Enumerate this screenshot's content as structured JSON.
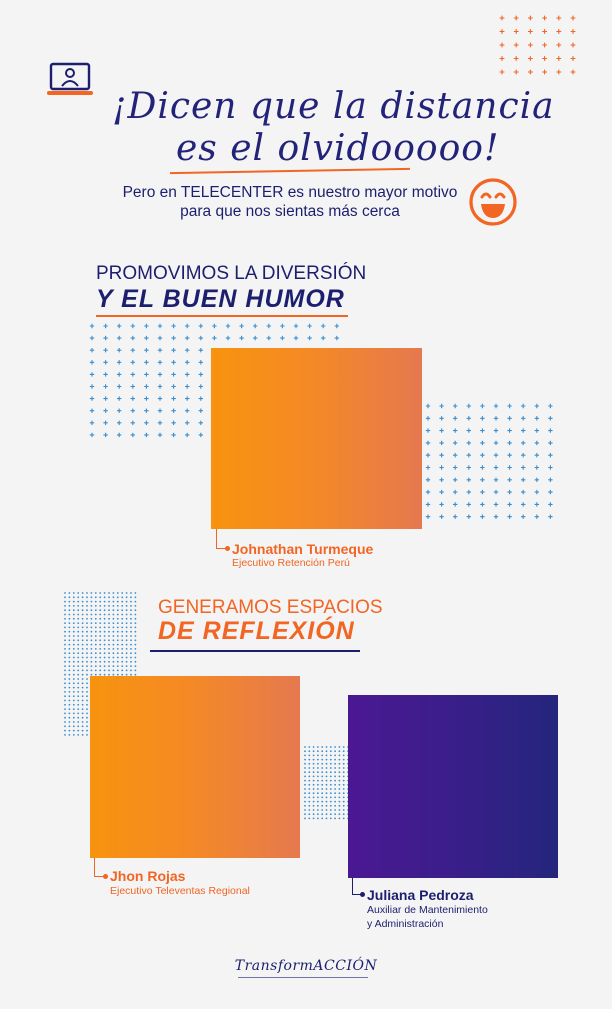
{
  "header": {
    "title_line1": "¡Dicen que la distancia",
    "title_line2": "es el olvidooooo!",
    "subtitle_line1": "Pero en TELECENTER es nuestro mayor motivo",
    "subtitle_line2": "para que nos sientas más cerca",
    "laptop_icon": "laptop-user-icon",
    "smiley_icon": "laughing-face-icon"
  },
  "section1": {
    "heading": "PROMOVIMOS LA DIVERSIÓN",
    "bold": "Y EL BUEN HUMOR",
    "person": {
      "name": "Johnathan Turmeque",
      "role": "Ejecutivo Retención Perú"
    }
  },
  "section2": {
    "heading": "GENERAMOS ESPACIOS",
    "bold": "DE REFLEXIÓN",
    "person1": {
      "name": "Jhon Rojas",
      "role": "Ejecutivo Televentas Regional"
    },
    "person2": {
      "name": "Juliana Pedroza",
      "role_line1": "Auxiliar de Mantenimiento",
      "role_line2": "y Administración"
    }
  },
  "footer": {
    "brand": "TransformACCIÓN"
  },
  "colors": {
    "navy": "#1c1f6e",
    "orange": "#f26522",
    "orange_gradient": [
      "#f7930f",
      "#e5794f"
    ],
    "purple_gradient": [
      "#4b1892",
      "#23267c"
    ],
    "dot_blue": "#3b8ecf",
    "dot_orange": "#f26522"
  }
}
